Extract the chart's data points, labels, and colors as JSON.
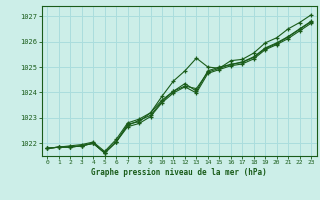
{
  "title": "Graphe pression niveau de la mer (hPa)",
  "bg_color": "#cceee8",
  "grid_color": "#aadddd",
  "line_color": "#1a5c1a",
  "xlim": [
    -0.5,
    23.5
  ],
  "ylim": [
    1021.5,
    1027.4
  ],
  "xticks": [
    0,
    1,
    2,
    3,
    4,
    5,
    6,
    7,
    8,
    9,
    10,
    11,
    12,
    13,
    14,
    15,
    16,
    17,
    18,
    19,
    20,
    21,
    22,
    23
  ],
  "yticks": [
    1022,
    1023,
    1024,
    1025,
    1026,
    1027
  ],
  "series1": [
    1021.8,
    1021.85,
    1021.85,
    1021.9,
    1022.0,
    1021.62,
    1022.05,
    1022.75,
    1022.85,
    1023.2,
    1023.85,
    1024.45,
    1024.85,
    1025.35,
    1025.0,
    1024.95,
    1025.25,
    1025.3,
    1025.55,
    1025.95,
    1026.15,
    1026.5,
    1026.75,
    1027.05
  ],
  "series2": [
    1021.8,
    1021.85,
    1021.85,
    1021.9,
    1022.0,
    1021.62,
    1022.05,
    1022.7,
    1022.9,
    1023.1,
    1023.65,
    1024.05,
    1024.35,
    1024.05,
    1024.85,
    1025.0,
    1025.1,
    1025.2,
    1025.4,
    1025.75,
    1025.95,
    1026.2,
    1026.5,
    1026.8
  ],
  "series3": [
    1021.8,
    1021.85,
    1021.9,
    1021.95,
    1022.05,
    1021.68,
    1022.15,
    1022.8,
    1022.95,
    1023.2,
    1023.7,
    1024.05,
    1024.25,
    1024.15,
    1024.8,
    1024.95,
    1025.1,
    1025.18,
    1025.38,
    1025.72,
    1025.92,
    1026.18,
    1026.48,
    1026.78
  ],
  "series4": [
    1021.8,
    1021.85,
    1021.85,
    1021.9,
    1022.0,
    1021.62,
    1022.05,
    1022.65,
    1022.78,
    1023.05,
    1023.6,
    1023.98,
    1024.22,
    1023.98,
    1024.75,
    1024.9,
    1025.05,
    1025.12,
    1025.32,
    1025.68,
    1025.88,
    1026.12,
    1026.42,
    1026.72
  ]
}
